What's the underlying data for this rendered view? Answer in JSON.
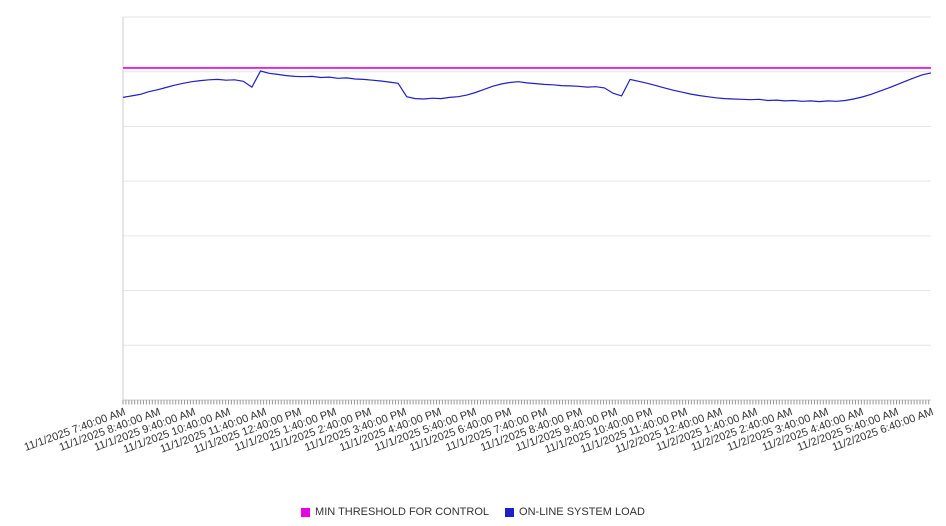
{
  "chart_data": {
    "type": "line",
    "title": "",
    "xlabel": "",
    "ylabel": "",
    "background": "#ffffff",
    "grid": true,
    "gridline_color": "#e6e6e6",
    "axis_color": "#cccccc",
    "tick_color": "#999999",
    "y_axis_labels": "none",
    "ylim": [
      0,
      100
    ],
    "legend_position": "bottom",
    "x_major_tick_interval": "1 hour",
    "x_minor_tick_interval": "5 minutes",
    "x_labels": [
      "11/1/2025 7:40:00 AM",
      "11/1/2025 8:40:00 AM",
      "11/1/2025 9:40:00 AM",
      "11/1/2025 10:40:00 AM",
      "11/1/2025 11:40:00 AM",
      "11/1/2025 12:40:00 PM",
      "11/1/2025 1:40:00 PM",
      "11/1/2025 2:40:00 PM",
      "11/1/2025 3:40:00 PM",
      "11/1/2025 4:40:00 PM",
      "11/1/2025 5:40:00 PM",
      "11/1/2025 6:40:00 PM",
      "11/1/2025 7:40:00 PM",
      "11/1/2025 8:40:00 PM",
      "11/1/2025 9:40:00 PM",
      "11/1/2025 10:40:00 PM",
      "11/1/2025 11:40:00 PM",
      "11/2/2025 12:40:00 AM",
      "11/2/2025 1:40:00 AM",
      "11/2/2025 2:40:00 AM",
      "11/2/2025 3:40:00 AM",
      "11/2/2025 4:40:00 AM",
      "11/2/2025 5:40:00 AM",
      "11/2/2025 6:40:00 AM"
    ],
    "series": [
      {
        "name": "MIN THRESHOLD FOR CONTROL",
        "color": "#e500e5",
        "type": "threshold",
        "value": 86.7
      },
      {
        "name": "ON-LINE SYSTEM LOAD",
        "color": "#1f1fc8",
        "type": "line",
        "values": [
          79.0,
          79.4,
          79.8,
          80.5,
          81.0,
          81.6,
          82.2,
          82.7,
          83.1,
          83.4,
          83.6,
          83.7,
          83.5,
          83.6,
          83.2,
          81.7,
          85.9,
          85.3,
          85.0,
          84.7,
          84.5,
          84.4,
          84.5,
          84.2,
          84.3,
          84.0,
          84.1,
          83.8,
          83.7,
          83.5,
          83.3,
          83.0,
          82.7,
          79.2,
          78.7,
          78.6,
          78.8,
          78.7,
          79.0,
          79.2,
          79.6,
          80.3,
          81.1,
          81.9,
          82.5,
          82.9,
          83.1,
          82.8,
          82.6,
          82.4,
          82.3,
          82.1,
          82.0,
          81.9,
          81.7,
          81.8,
          81.5,
          80.1,
          79.4,
          83.7,
          83.2,
          82.7,
          82.1,
          81.5,
          80.9,
          80.4,
          79.9,
          79.5,
          79.2,
          78.9,
          78.7,
          78.6,
          78.5,
          78.4,
          78.5,
          78.2,
          78.3,
          78.1,
          78.2,
          78.0,
          78.1,
          77.9,
          78.1,
          78.0,
          78.2,
          78.6,
          79.1,
          79.8,
          80.6,
          81.4,
          82.3,
          83.2,
          84.1,
          84.9,
          85.4
        ]
      }
    ]
  }
}
